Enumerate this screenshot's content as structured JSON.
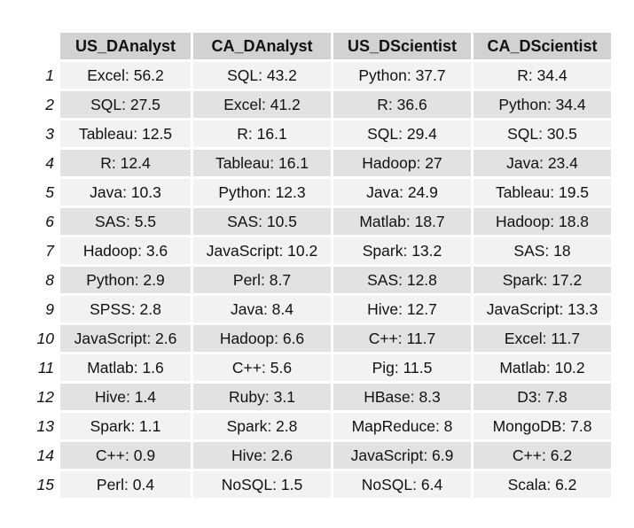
{
  "chart_data": {
    "type": "table",
    "columns": [
      "US_DAnalyst",
      "CA_DAnalyst",
      "US_DScientist",
      "CA_DScientist"
    ],
    "row_labels": [
      "1",
      "2",
      "3",
      "4",
      "5",
      "6",
      "7",
      "8",
      "9",
      "10",
      "11",
      "12",
      "13",
      "14",
      "15"
    ],
    "rows": [
      [
        "Excel: 56.2",
        "SQL: 43.2",
        "Python: 37.7",
        "R: 34.4"
      ],
      [
        "SQL: 27.5",
        "Excel: 41.2",
        "R: 36.6",
        "Python: 34.4"
      ],
      [
        "Tableau: 12.5",
        "R: 16.1",
        "SQL: 29.4",
        "SQL: 30.5"
      ],
      [
        "R: 12.4",
        "Tableau: 16.1",
        "Hadoop: 27",
        "Java: 23.4"
      ],
      [
        "Java: 10.3",
        "Python: 12.3",
        "Java: 24.9",
        "Tableau: 19.5"
      ],
      [
        "SAS: 5.5",
        "SAS: 10.5",
        "Matlab: 18.7",
        "Hadoop: 18.8"
      ],
      [
        "Hadoop: 3.6",
        "JavaScript: 10.2",
        "Spark: 13.2",
        "SAS: 18"
      ],
      [
        "Python: 2.9",
        "Perl: 8.7",
        "SAS: 12.8",
        "Spark: 17.2"
      ],
      [
        "SPSS: 2.8",
        "Java: 8.4",
        "Hive: 12.7",
        "JavaScript: 13.3"
      ],
      [
        "JavaScript: 2.6",
        "Hadoop: 6.6",
        "C++: 11.7",
        "Excel: 11.7"
      ],
      [
        "Matlab: 1.6",
        "C++: 5.6",
        "Pig: 11.5",
        "Matlab: 10.2"
      ],
      [
        "Hive: 1.4",
        "Ruby: 3.1",
        "HBase: 8.3",
        "D3: 7.8"
      ],
      [
        "Spark: 1.1",
        "Spark: 2.8",
        "MapReduce: 8",
        "MongoDB: 7.8"
      ],
      [
        "C++: 0.9",
        "Hive: 2.6",
        "JavaScript: 6.9",
        "C++: 6.2"
      ],
      [
        "Perl: 0.4",
        "NoSQL: 1.5",
        "NoSQL: 6.4",
        "Scala: 6.2"
      ]
    ],
    "header_color": "#d2d2d2",
    "row_colors": [
      "#f2f2f2",
      "#e2e2e2"
    ]
  }
}
